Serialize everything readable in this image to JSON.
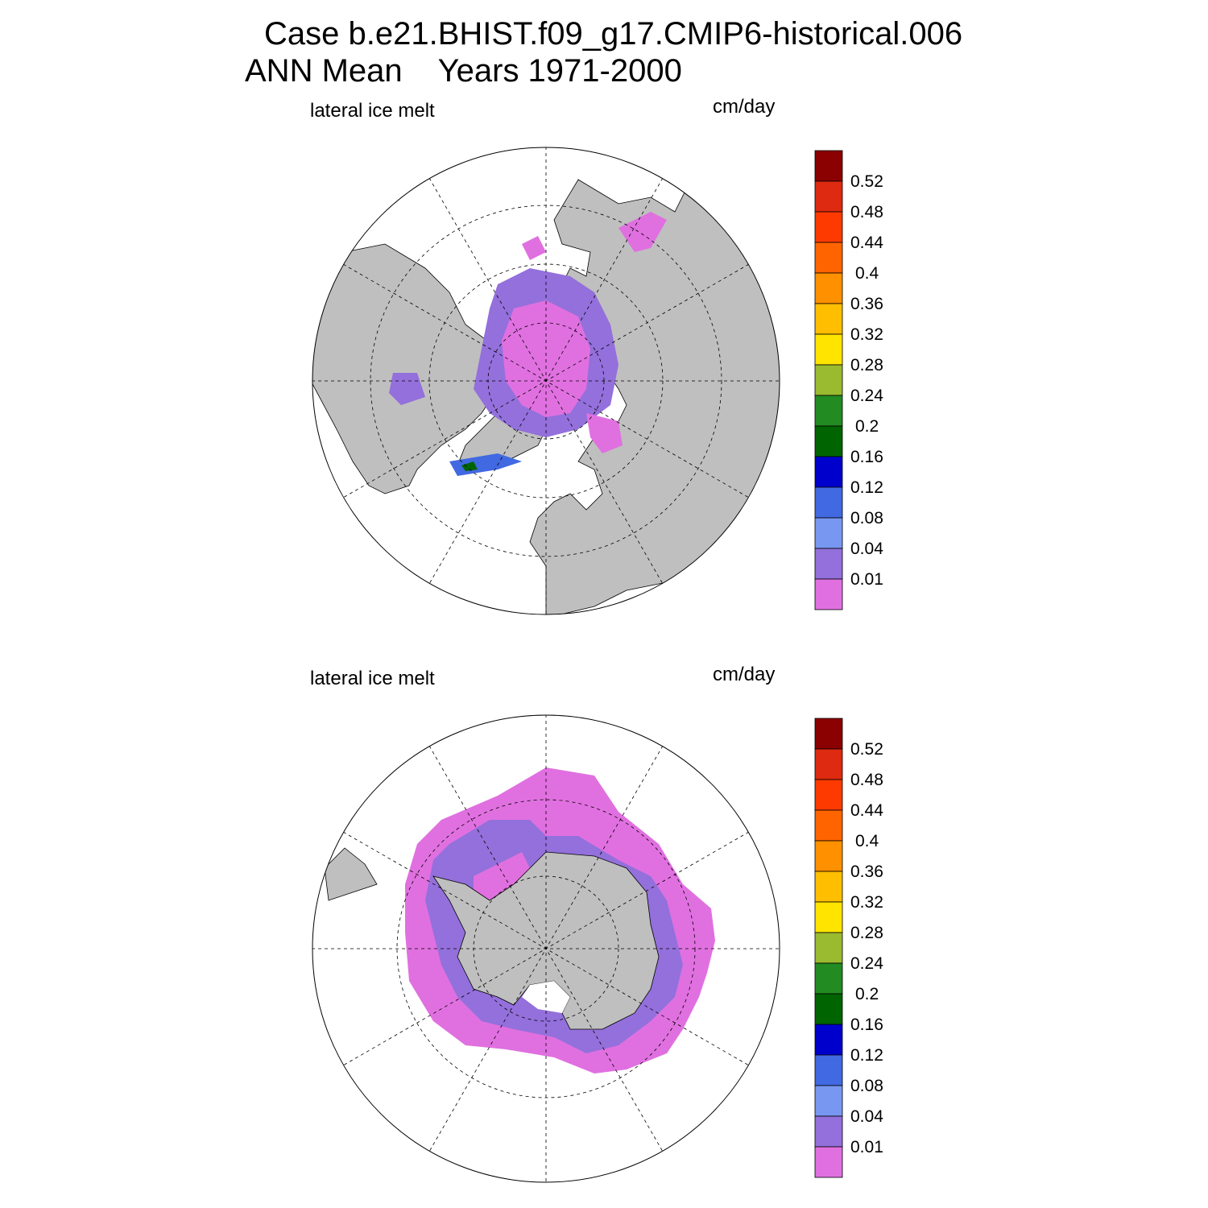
{
  "title": {
    "case": "Case b.e21.BHIST.f09_g17.CMIP6-historical.006",
    "period": "ANN Mean",
    "years": "Years 1971-2000"
  },
  "panels": [
    {
      "hemisphere": "north",
      "variable": "lateral ice melt",
      "units": "cm/day"
    },
    {
      "hemisphere": "south",
      "variable": "lateral ice melt",
      "units": "cm/day"
    }
  ],
  "colorbar": {
    "labels": [
      "0.52",
      "0.48",
      "0.44",
      "0.4",
      "0.36",
      "0.32",
      "0.28",
      "0.24",
      "0.2",
      "0.16",
      "0.12",
      "0.08",
      "0.04",
      "0.01"
    ],
    "colors": [
      "#8b0000",
      "#dd2a10",
      "#ff3a00",
      "#ff6400",
      "#ff9000",
      "#ffbe00",
      "#ffe400",
      "#9aba30",
      "#228b22",
      "#006400",
      "#0000cd",
      "#4169e1",
      "#7897f0",
      "#9370db",
      "#e070e0"
    ]
  },
  "map_colors": {
    "land": "#bfbfbf",
    "no_ice": "#ffffff",
    "ice_low": "#e070e0",
    "ice_001": "#9370db",
    "ice_004": "#7897f0",
    "ice_008": "#4169e1",
    "ice_012": "#0000cd",
    "ice_016": "#006400"
  }
}
